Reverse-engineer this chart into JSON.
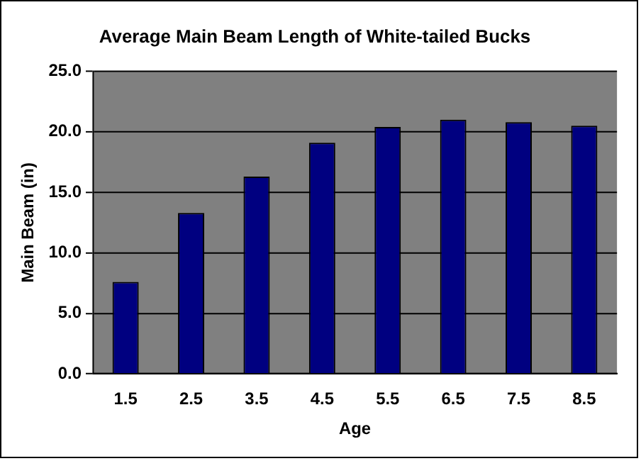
{
  "chart_data": {
    "type": "bar",
    "title": "Average Main Beam Length of White-tailed Bucks",
    "xlabel": "Age",
    "ylabel": "Main Beam (in)",
    "categories": [
      "1.5",
      "2.5",
      "3.5",
      "4.5",
      "5.5",
      "6.5",
      "7.5",
      "8.5"
    ],
    "values": [
      7.6,
      13.3,
      16.3,
      19.1,
      20.4,
      21.0,
      20.8,
      20.5
    ],
    "color": "#000080",
    "ylim": [
      0,
      25
    ],
    "yticks": [
      {
        "value": 0,
        "label": "0.0"
      },
      {
        "value": 5,
        "label": "5.0"
      },
      {
        "value": 10,
        "label": "10.0"
      },
      {
        "value": 15,
        "label": "15.0"
      },
      {
        "value": 20,
        "label": "20.0"
      },
      {
        "value": 25,
        "label": "25.0"
      }
    ],
    "grid": "y",
    "legend": false
  }
}
